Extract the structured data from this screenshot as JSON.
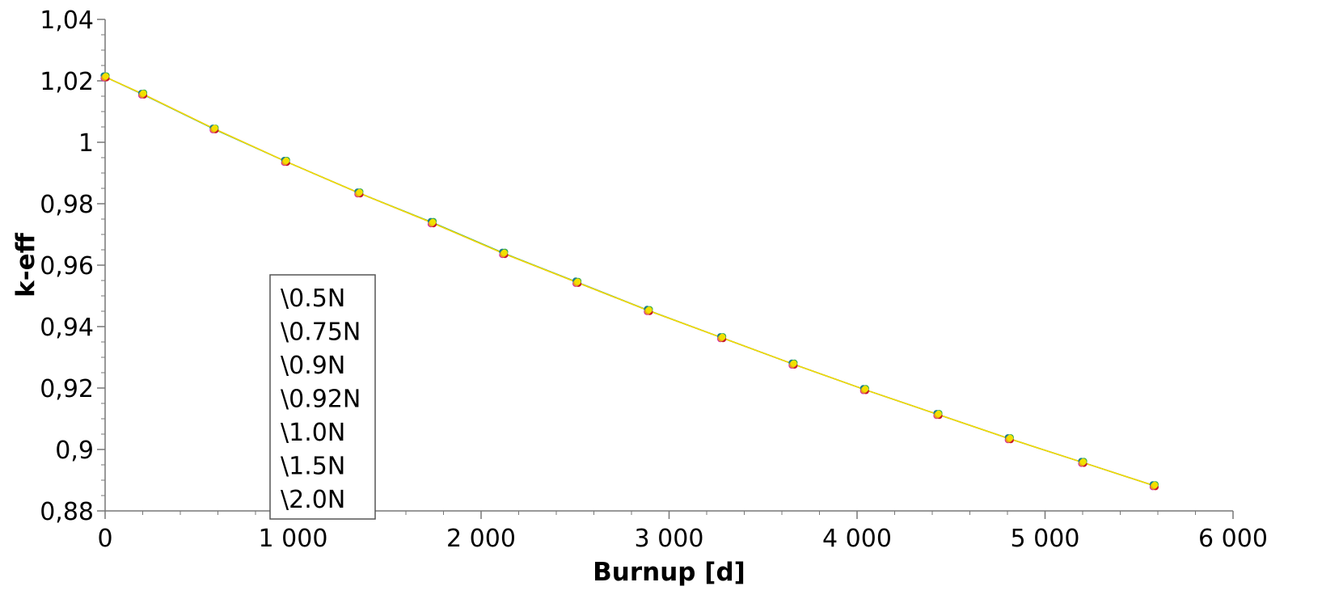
{
  "chart_data": {
    "type": "line",
    "title": "",
    "xlabel": "Burnup [d]",
    "ylabel": "k-eff",
    "xlim": [
      0,
      6000
    ],
    "ylim": [
      0.88,
      1.04
    ],
    "x_ticks": [
      0,
      1000,
      2000,
      3000,
      4000,
      5000,
      6000
    ],
    "x_tick_labels": [
      "0",
      "1 000",
      "2 000",
      "3 000",
      "4 000",
      "5 000",
      "6 000"
    ],
    "y_ticks": [
      0.88,
      0.9,
      0.92,
      0.94,
      0.96,
      0.98,
      1.0,
      1.02,
      1.04
    ],
    "y_tick_labels": [
      "0,88",
      "0,9",
      "0,92",
      "0,94",
      "0,96",
      "0,98",
      "1",
      "1,02",
      "1,04"
    ],
    "grid": false,
    "legend_position": "center-left",
    "x": [
      0,
      200,
      580,
      960,
      1350,
      1740,
      2120,
      2510,
      2890,
      3280,
      3660,
      4040,
      4430,
      4810,
      5200,
      5580
    ],
    "series": [
      {
        "name": "\\0.5N",
        "color": "#d6249f",
        "values": [
          1.0213,
          1.0157,
          1.0044,
          0.9938,
          0.9835,
          0.9738,
          0.9638,
          0.9544,
          0.9452,
          0.9364,
          0.9278,
          0.9195,
          0.9114,
          0.9035,
          0.8958,
          0.8882
        ]
      },
      {
        "name": "\\0.75N",
        "color": "#c8102e",
        "values": [
          1.0213,
          1.0157,
          1.0044,
          0.9938,
          0.9835,
          0.9738,
          0.9638,
          0.9544,
          0.9452,
          0.9364,
          0.9278,
          0.9195,
          0.9114,
          0.9035,
          0.8958,
          0.8882
        ]
      },
      {
        "name": "\\0.9N",
        "color": "#1a7f8c",
        "values": [
          1.0213,
          1.0156,
          1.0043,
          0.9938,
          0.9835,
          0.9739,
          0.9639,
          0.9545,
          0.9453,
          0.9364,
          0.9278,
          0.9195,
          0.9114,
          0.9035,
          0.8958,
          0.8882
        ]
      },
      {
        "name": "\\0.92N",
        "color": "#2fa84f",
        "values": [
          1.0213,
          1.0157,
          1.0043,
          0.9938,
          0.9835,
          0.9739,
          0.9639,
          0.9544,
          0.9452,
          0.9364,
          0.9278,
          0.9195,
          0.9114,
          0.9035,
          0.8958,
          0.8882
        ]
      },
      {
        "name": "\\1.0N",
        "color": "#8bc34a",
        "values": [
          1.0213,
          1.0157,
          1.0044,
          0.9938,
          0.9835,
          0.9738,
          0.9638,
          0.9544,
          0.9452,
          0.9364,
          0.9278,
          0.9195,
          0.9114,
          0.9035,
          0.8958,
          0.8882
        ]
      },
      {
        "name": "\\1.5N",
        "color": "#e8a317",
        "values": [
          1.0213,
          1.0157,
          1.0044,
          0.9938,
          0.9835,
          0.9738,
          0.9638,
          0.9544,
          0.9452,
          0.9364,
          0.9278,
          0.9195,
          0.9114,
          0.9035,
          0.8958,
          0.8882
        ]
      },
      {
        "name": "\\2.0N",
        "color": "#f2e000",
        "values": [
          1.0213,
          1.0157,
          1.0044,
          0.9938,
          0.9835,
          0.9738,
          0.9638,
          0.9544,
          0.9452,
          0.9364,
          0.9278,
          0.9195,
          0.9114,
          0.9035,
          0.8958,
          0.8882
        ]
      }
    ]
  }
}
